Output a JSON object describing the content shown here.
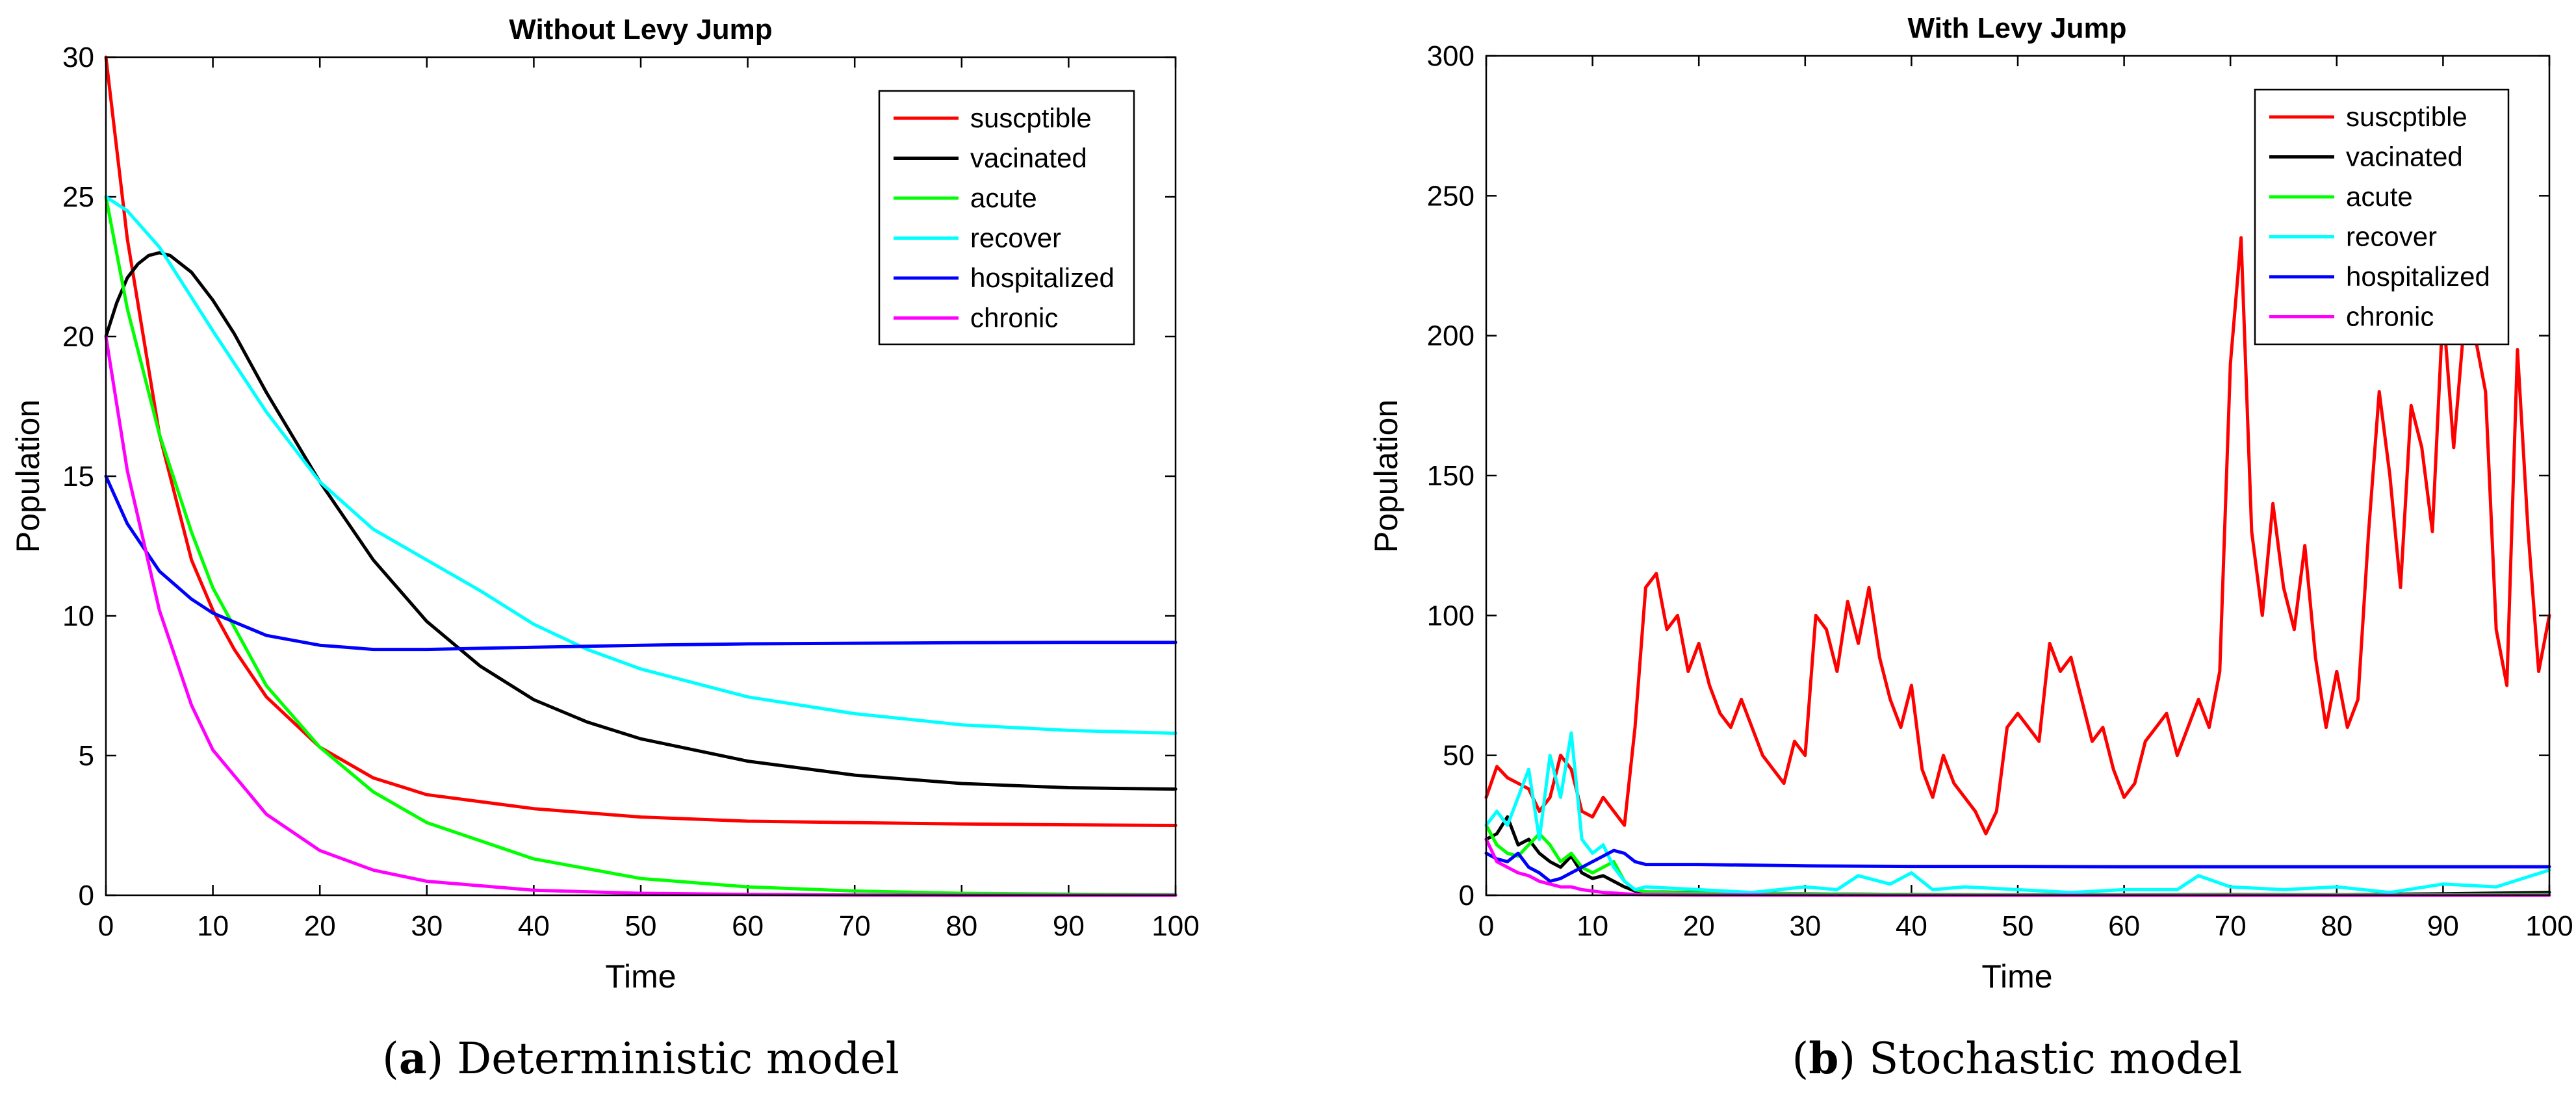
{
  "figure": {
    "captions": [
      {
        "paren_open": "(",
        "letter": "a",
        "paren_close": ")",
        "text": " Deterministic model"
      },
      {
        "paren_open": "(",
        "letter": "b",
        "paren_close": ")",
        "text": " Stochastic model"
      }
    ]
  },
  "chart_data": [
    {
      "type": "line",
      "title": "Without Levy Jump",
      "xlabel": "Time",
      "ylabel": "Population",
      "xlim": [
        0,
        100
      ],
      "ylim": [
        0,
        30
      ],
      "xticks": [
        0,
        10,
        20,
        30,
        40,
        50,
        60,
        70,
        80,
        90,
        100
      ],
      "yticks": [
        0,
        5,
        10,
        15,
        20,
        25,
        30
      ],
      "legend_position": "top-right",
      "series": [
        {
          "name": "suscptible",
          "color": "#ff0000",
          "x": [
            0,
            2,
            5,
            8,
            10,
            12,
            15,
            20,
            25,
            30,
            40,
            50,
            60,
            70,
            80,
            90,
            100
          ],
          "y": [
            30,
            23.5,
            16.5,
            12,
            10.2,
            8.8,
            7.1,
            5.3,
            4.2,
            3.6,
            3.1,
            2.8,
            2.65,
            2.6,
            2.55,
            2.52,
            2.5
          ]
        },
        {
          "name": "vacinated",
          "color": "#000000",
          "x": [
            0,
            1,
            2,
            3,
            4,
            5,
            6,
            8,
            10,
            12,
            15,
            20,
            25,
            30,
            35,
            40,
            45,
            50,
            60,
            70,
            80,
            90,
            100
          ],
          "y": [
            20,
            21.2,
            22.1,
            22.6,
            22.9,
            23.0,
            22.9,
            22.3,
            21.3,
            20.1,
            18.0,
            14.8,
            12.0,
            9.8,
            8.2,
            7.0,
            6.2,
            5.6,
            4.8,
            4.3,
            4.0,
            3.85,
            3.8
          ]
        },
        {
          "name": "acute",
          "color": "#00ff00",
          "x": [
            0,
            2,
            5,
            8,
            10,
            15,
            20,
            25,
            30,
            40,
            50,
            60,
            70,
            80,
            90,
            100
          ],
          "y": [
            25,
            21,
            16.5,
            13,
            11,
            7.5,
            5.3,
            3.7,
            2.6,
            1.3,
            0.6,
            0.3,
            0.15,
            0.07,
            0.04,
            0.02
          ]
        },
        {
          "name": "recover",
          "color": "#00ffff",
          "x": [
            0,
            2,
            5,
            10,
            15,
            20,
            25,
            30,
            35,
            40,
            45,
            50,
            60,
            70,
            80,
            90,
            100
          ],
          "y": [
            25,
            24.5,
            23.2,
            20.2,
            17.3,
            14.8,
            13.1,
            12.0,
            10.9,
            9.7,
            8.8,
            8.1,
            7.1,
            6.5,
            6.1,
            5.9,
            5.8
          ]
        },
        {
          "name": "hospitalized",
          "color": "#0000ff",
          "x": [
            0,
            2,
            5,
            8,
            10,
            15,
            20,
            25,
            30,
            40,
            50,
            60,
            70,
            80,
            90,
            100
          ],
          "y": [
            15,
            13.3,
            11.6,
            10.6,
            10.1,
            9.3,
            8.95,
            8.8,
            8.8,
            8.88,
            8.95,
            9.0,
            9.02,
            9.04,
            9.05,
            9.05
          ]
        },
        {
          "name": "chronic",
          "color": "#ff00ff",
          "x": [
            0,
            2,
            5,
            8,
            10,
            15,
            20,
            25,
            30,
            40,
            50,
            60,
            70,
            80,
            90,
            100
          ],
          "y": [
            20,
            15.2,
            10.2,
            6.8,
            5.2,
            2.9,
            1.6,
            0.9,
            0.5,
            0.18,
            0.07,
            0.03,
            0.01,
            0.0,
            0.0,
            0.0
          ]
        }
      ]
    },
    {
      "type": "line",
      "title": "With Levy Jump",
      "xlabel": "Time",
      "ylabel": "Population",
      "xlim": [
        0,
        100
      ],
      "ylim": [
        0,
        300
      ],
      "xticks": [
        0,
        10,
        20,
        30,
        40,
        50,
        60,
        70,
        80,
        90,
        100
      ],
      "yticks": [
        0,
        50,
        100,
        150,
        200,
        250,
        300
      ],
      "legend_position": "top-right",
      "series": [
        {
          "name": "suscptible",
          "color": "#ff0000",
          "x": [
            0,
            1,
            2,
            3,
            4,
            5,
            6,
            7,
            8,
            9,
            10,
            11,
            12,
            13,
            14,
            15,
            16,
            17,
            18,
            19,
            20,
            21,
            22,
            23,
            24,
            25,
            26,
            27,
            28,
            29,
            30,
            31,
            32,
            33,
            34,
            35,
            36,
            37,
            38,
            39,
            40,
            41,
            42,
            43,
            44,
            45,
            46,
            47,
            48,
            49,
            50,
            51,
            52,
            53,
            54,
            55,
            56,
            57,
            58,
            59,
            60,
            61,
            62,
            63,
            64,
            65,
            66,
            67,
            68,
            69,
            70,
            71,
            72,
            73,
            74,
            75,
            76,
            77,
            78,
            79,
            80,
            81,
            82,
            83,
            84,
            85,
            86,
            87,
            88,
            89,
            90,
            91,
            92,
            93,
            94,
            95,
            96,
            97,
            98,
            99,
            100
          ],
          "y": [
            35,
            46,
            42,
            40,
            38,
            30,
            35,
            50,
            45,
            30,
            28,
            35,
            30,
            25,
            60,
            110,
            115,
            95,
            100,
            80,
            90,
            75,
            65,
            60,
            70,
            60,
            50,
            45,
            40,
            55,
            50,
            100,
            95,
            80,
            105,
            90,
            110,
            85,
            70,
            60,
            75,
            45,
            35,
            50,
            40,
            35,
            30,
            22,
            30,
            60,
            65,
            60,
            55,
            90,
            80,
            85,
            70,
            55,
            60,
            45,
            35,
            40,
            55,
            60,
            65,
            50,
            60,
            70,
            60,
            80,
            190,
            235,
            130,
            100,
            140,
            110,
            95,
            125,
            85,
            60,
            80,
            60,
            70,
            130,
            180,
            150,
            110,
            175,
            160,
            130,
            210,
            160,
            205,
            200,
            180,
            95,
            75,
            195,
            130,
            80,
            100
          ]
        },
        {
          "name": "vacinated",
          "color": "#000000",
          "x": [
            0,
            1,
            2,
            3,
            4,
            5,
            6,
            7,
            8,
            9,
            10,
            11,
            12,
            13,
            14,
            15,
            20,
            30,
            40,
            50,
            60,
            70,
            80,
            90,
            100
          ],
          "y": [
            20,
            22,
            28,
            18,
            20,
            15,
            12,
            10,
            14,
            8,
            6,
            7,
            5,
            3,
            1.5,
            1.2,
            1.0,
            0.5,
            0.3,
            0.2,
            0.2,
            0.3,
            0.2,
            0.5,
            1.0
          ]
        },
        {
          "name": "acute",
          "color": "#00ff00",
          "x": [
            0,
            1,
            2,
            3,
            4,
            5,
            6,
            7,
            8,
            9,
            10,
            11,
            12,
            13,
            14,
            15,
            20,
            30,
            40,
            50,
            60,
            70,
            80,
            90,
            100
          ],
          "y": [
            25,
            18,
            15,
            14,
            18,
            22,
            18,
            12,
            15,
            10,
            8,
            10,
            12,
            5,
            2,
            1.2,
            0.8,
            0.5,
            0.3,
            0.2,
            0.2,
            0.2,
            0.2,
            0.2,
            0.3
          ]
        },
        {
          "name": "recover",
          "color": "#00ffff",
          "x": [
            0,
            1,
            2,
            3,
            4,
            5,
            6,
            7,
            8,
            9,
            10,
            11,
            12,
            13,
            14,
            15,
            20,
            25,
            30,
            33,
            35,
            38,
            40,
            42,
            45,
            50,
            55,
            60,
            65,
            67,
            70,
            75,
            80,
            85,
            90,
            95,
            100
          ],
          "y": [
            25,
            30,
            25,
            35,
            45,
            20,
            50,
            35,
            58,
            20,
            15,
            18,
            10,
            5,
            2,
            3,
            2,
            1,
            3,
            2,
            7,
            4,
            8,
            2,
            3,
            2,
            1,
            2,
            2,
            7,
            3,
            2,
            3,
            1,
            4,
            3,
            9
          ]
        },
        {
          "name": "hospitalized",
          "color": "#0000ff",
          "x": [
            0,
            1,
            2,
            3,
            4,
            5,
            6,
            7,
            8,
            9,
            10,
            11,
            12,
            13,
            14,
            15,
            20,
            30,
            40,
            50,
            60,
            70,
            80,
            90,
            100
          ],
          "y": [
            15,
            13,
            12,
            15,
            10,
            8,
            5,
            6,
            8,
            10,
            12,
            14,
            16,
            15,
            12,
            11,
            11,
            10.5,
            10.3,
            10.3,
            10.2,
            10.2,
            10.2,
            10.2,
            10.2
          ]
        },
        {
          "name": "chronic",
          "color": "#ff00ff",
          "x": [
            0,
            1,
            2,
            3,
            4,
            5,
            6,
            7,
            8,
            9,
            10,
            11,
            12,
            13,
            14,
            15,
            20,
            30,
            40,
            50,
            60,
            70,
            80,
            90,
            100
          ],
          "y": [
            20,
            12,
            10,
            8,
            7,
            5,
            4,
            3,
            3,
            2,
            1.5,
            1,
            0.8,
            0.5,
            0.3,
            0.2,
            0.1,
            0.05,
            0.0,
            0.0,
            0.0,
            0.0,
            0.0,
            0.0,
            0.0
          ]
        }
      ]
    }
  ]
}
